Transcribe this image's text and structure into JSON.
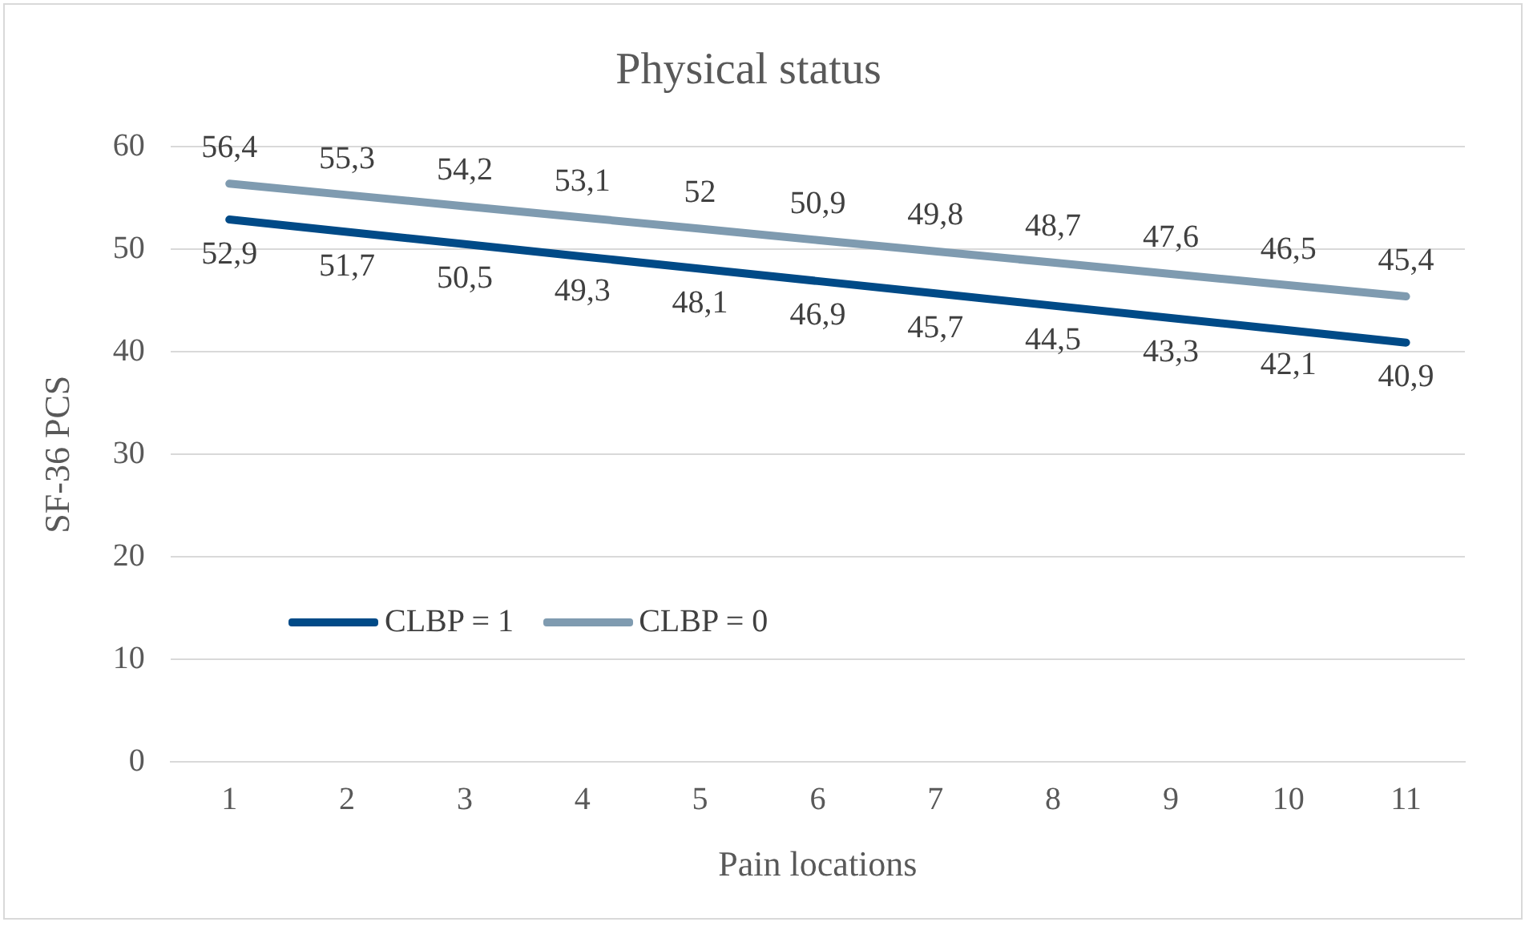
{
  "chart_data": {
    "type": "line",
    "title": "Physical status",
    "xlabel": "Pain locations",
    "ylabel": "SF-36 PCS",
    "categories": [
      "1",
      "2",
      "3",
      "4",
      "5",
      "6",
      "7",
      "8",
      "9",
      "10",
      "11"
    ],
    "series": [
      {
        "name": "CLBP = 1",
        "color": "#004a87",
        "values": [
          52.9,
          51.7,
          50.5,
          49.3,
          48.1,
          46.9,
          45.7,
          44.5,
          43.3,
          42.1,
          40.9
        ],
        "value_labels": [
          "52,9",
          "51,7",
          "50,5",
          "49,3",
          "48,1",
          "46,9",
          "45,7",
          "44,5",
          "43,3",
          "42,1",
          "40,9"
        ]
      },
      {
        "name": "CLBP = 0",
        "color": "#7f9bb0",
        "values": [
          56.4,
          55.3,
          54.2,
          53.1,
          52,
          50.9,
          49.8,
          48.7,
          47.6,
          46.5,
          45.4
        ],
        "value_labels": [
          "56,4",
          "55,3",
          "54,2",
          "53,1",
          "52",
          "50,9",
          "49,8",
          "48,7",
          "47,6",
          "46,5",
          "45,4"
        ]
      }
    ],
    "ylim": [
      0,
      60
    ],
    "yticks": [
      0,
      10,
      20,
      30,
      40,
      50,
      60
    ],
    "grid": "y",
    "legend": "bottom left",
    "marker": "none",
    "line_style": "solid"
  }
}
